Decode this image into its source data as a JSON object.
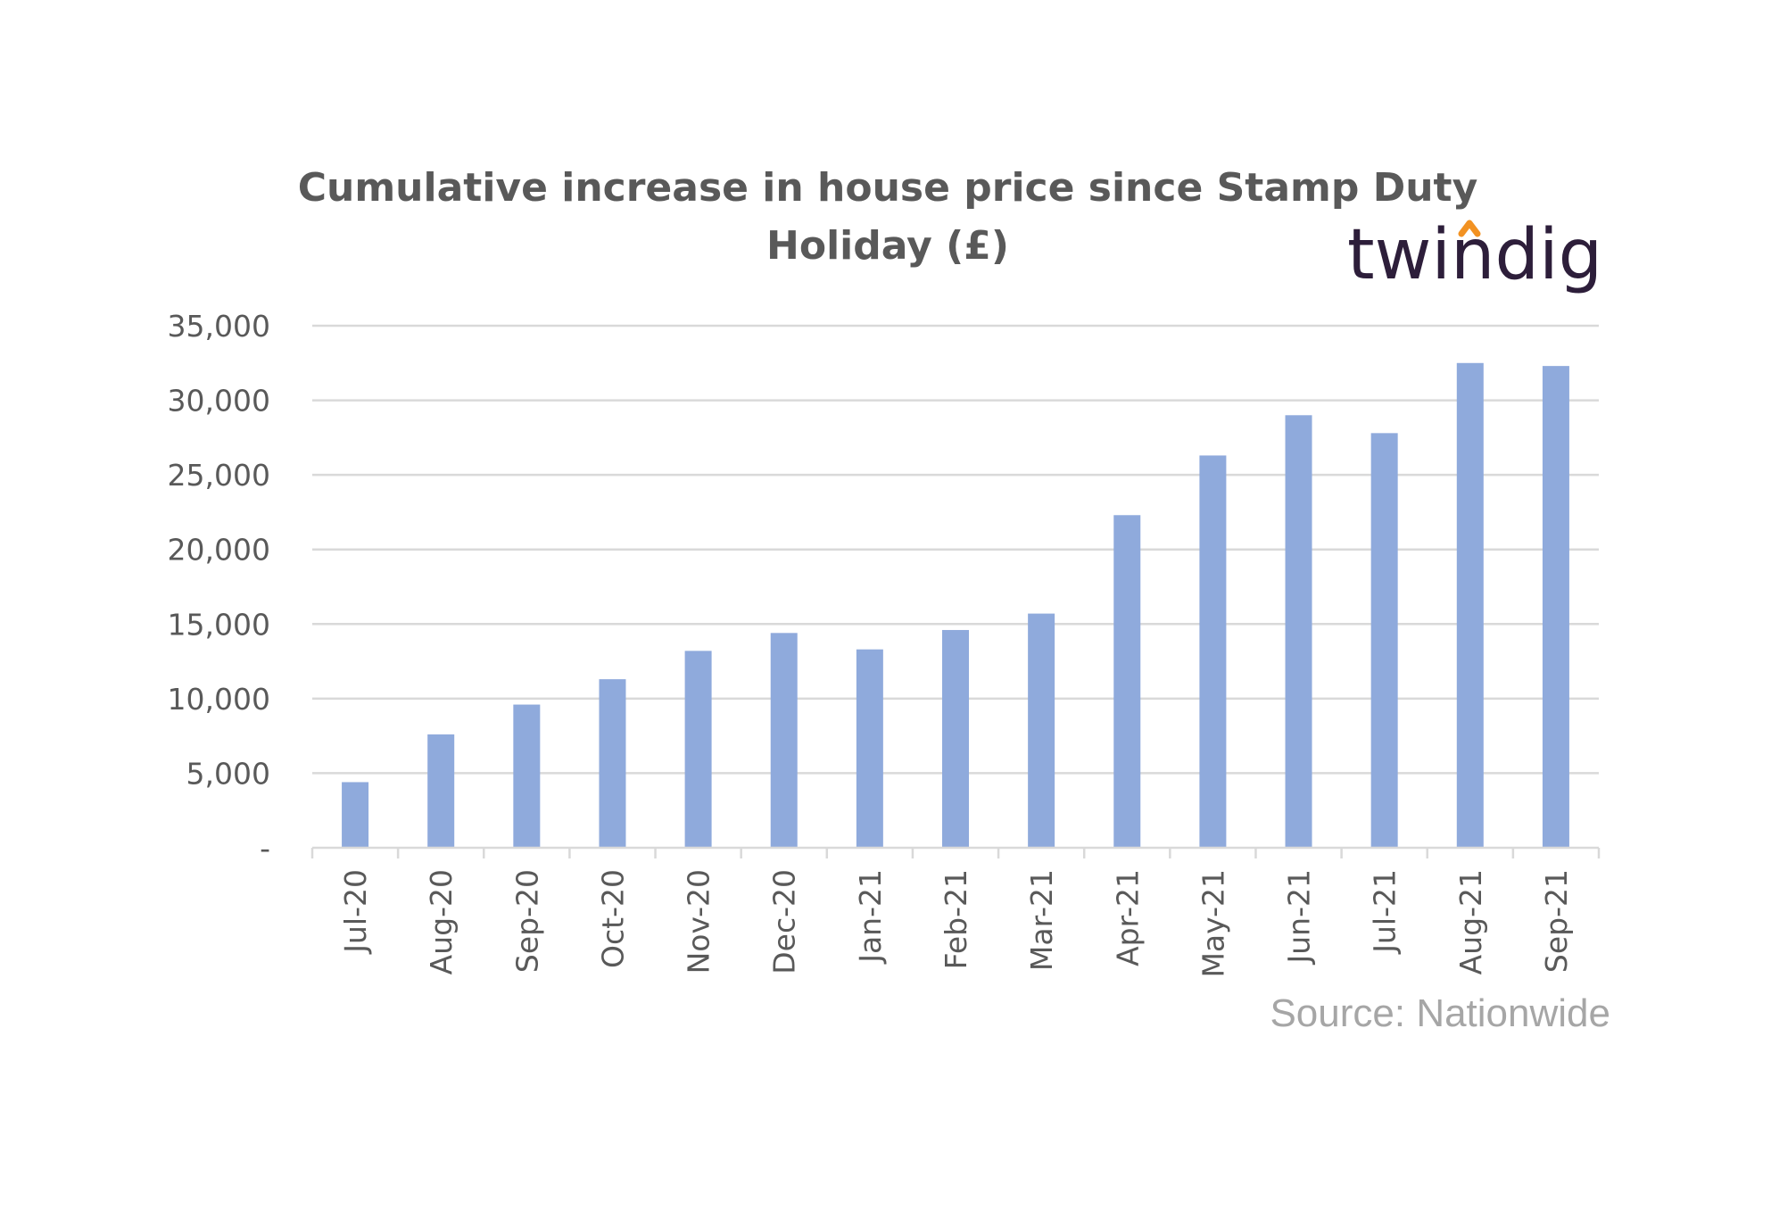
{
  "title_line1": "Cumulative increase in house price since Stamp Duty",
  "title_line2": "Holiday (£)",
  "logo": {
    "text": "twindig",
    "text_color": "#2d1e3a",
    "accent_color": "#f29222"
  },
  "source": "Source: Nationwide",
  "colors": {
    "bar": "#8faadc",
    "grid": "#d9d9d9",
    "text": "#595959",
    "source": "#a6a6a6"
  },
  "chart_data": {
    "type": "bar",
    "title": "Cumulative increase in house price since Stamp Duty Holiday (£)",
    "xlabel": "",
    "ylabel": "",
    "ylim": [
      0,
      35000
    ],
    "grid": true,
    "legend": "none",
    "categories": [
      "Jul-20",
      "Aug-20",
      "Sep-20",
      "Oct-20",
      "Nov-20",
      "Dec-20",
      "Jan-21",
      "Feb-21",
      "Mar-21",
      "Apr-21",
      "May-21",
      "Jun-21",
      "Jul-21",
      "Aug-21",
      "Sep-21"
    ],
    "values": [
      4400,
      7600,
      9600,
      11300,
      13200,
      14400,
      13300,
      14600,
      15700,
      22300,
      26300,
      29000,
      27800,
      32500,
      32300
    ],
    "y_ticks": [
      0,
      5000,
      10000,
      15000,
      20000,
      25000,
      30000,
      35000
    ],
    "y_tick_labels": [
      "-",
      "5,000",
      "10,000",
      "15,000",
      "20,000",
      "25,000",
      "30,000",
      "35,000"
    ]
  }
}
